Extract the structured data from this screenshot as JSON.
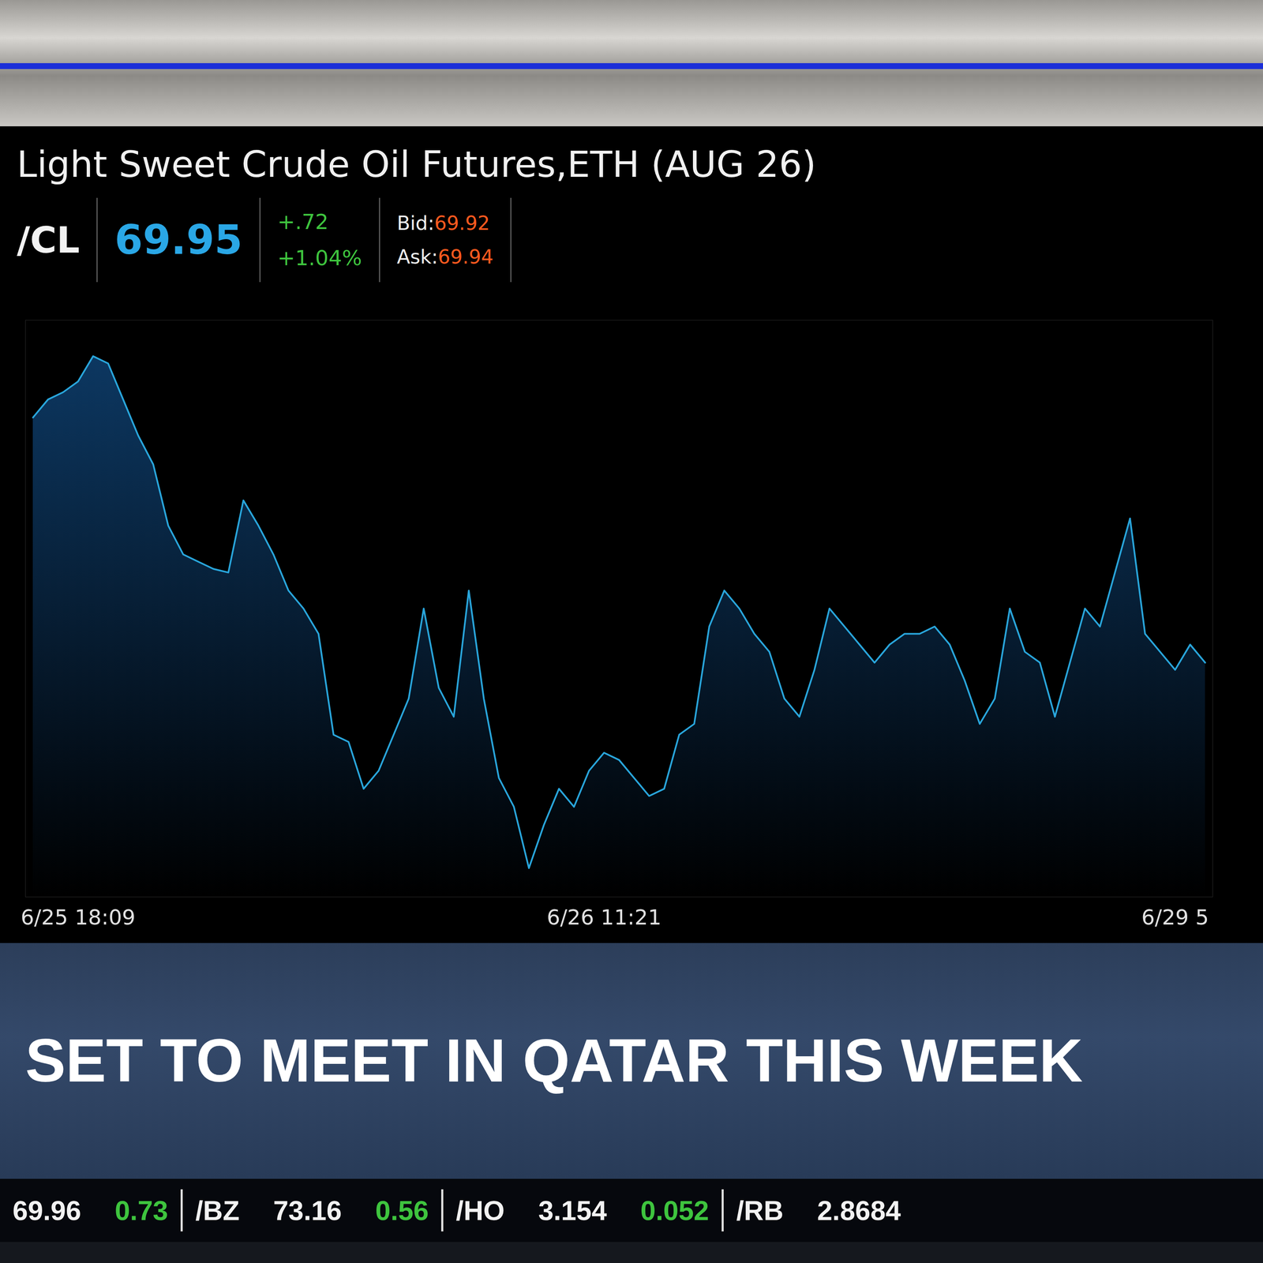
{
  "chart_data": {
    "type": "area",
    "title": "Light Sweet Crude Oil Futures,ETH (AUG 26)",
    "color": "#29a6dc",
    "categories": [
      null,
      null,
      null,
      "6/25 18:09",
      null,
      null,
      null,
      null,
      null,
      null,
      null,
      null,
      null,
      null,
      null,
      null,
      null,
      null,
      null,
      null,
      null,
      null,
      null,
      null,
      null,
      null,
      null,
      null,
      null,
      null,
      null,
      null,
      null,
      null,
      null,
      null,
      null,
      null,
      "6/26 11:21",
      null,
      null,
      null,
      null,
      null,
      null,
      null,
      null,
      null,
      null,
      null,
      null,
      null,
      null,
      null,
      null,
      null,
      null,
      null,
      null,
      null,
      null,
      null,
      null,
      null,
      null,
      null,
      null,
      null,
      null,
      null,
      null,
      null,
      null,
      null,
      null,
      null,
      "6/29 5",
      null,
      null
    ],
    "values": [
      70.63,
      70.68,
      70.7,
      70.73,
      70.8,
      70.78,
      70.68,
      70.58,
      70.5,
      70.33,
      70.25,
      70.23,
      70.21,
      70.2,
      70.4,
      70.33,
      70.25,
      70.15,
      70.1,
      70.03,
      69.75,
      69.73,
      69.6,
      69.65,
      69.75,
      69.85,
      70.1,
      69.88,
      69.8,
      70.15,
      69.85,
      69.63,
      69.55,
      69.38,
      69.5,
      69.6,
      69.55,
      69.65,
      69.7,
      69.68,
      69.63,
      69.58,
      69.6,
      69.75,
      69.78,
      70.05,
      70.15,
      70.1,
      70.03,
      69.98,
      69.85,
      69.8,
      69.93,
      70.1,
      70.05,
      70.0,
      69.95,
      70.0,
      70.03,
      70.03,
      70.05,
      70.0,
      69.9,
      69.78,
      69.85,
      70.1,
      69.98,
      69.95,
      69.8,
      69.95,
      70.1,
      70.05,
      70.2,
      70.35,
      70.03,
      69.98,
      69.93,
      70.0,
      69.95
    ],
    "ylim": [
      69.3,
      70.9
    ],
    "yticks": [],
    "grid": false,
    "tick_labels": "x"
  },
  "header": {
    "symbol": "/CL",
    "price": 69.95,
    "change": "+.72",
    "change_pct": "+1.04%",
    "bid": {
      "label": "Bid:",
      "value": 69.92
    },
    "ask": {
      "label": "Ask:",
      "value": 69.94
    }
  },
  "banner": "SET TO MEET IN QATAR THIS WEEK",
  "ticker": [
    {
      "last": 69.96,
      "change": 0.73
    },
    {
      "symbol": "/BZ",
      "last": 73.16,
      "change": 0.56
    },
    {
      "symbol": "/HO",
      "last": 3.154,
      "change": 0.052
    },
    {
      "symbol": "/RB",
      "last": 2.8684
    }
  ]
}
